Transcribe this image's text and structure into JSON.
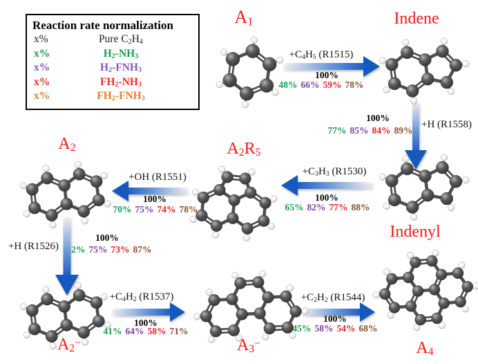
{
  "legend": {
    "title": "Reaction rate normalization",
    "rows": [
      {
        "x": "x%",
        "name": "Pure C₂H₄",
        "color": "#1a1a1a"
      },
      {
        "x": "x%",
        "name": "H₂-NH₃",
        "color": "#189A4F"
      },
      {
        "x": "x%",
        "name": "H₂-FNH₃",
        "color": "#8C55BE"
      },
      {
        "x": "x%",
        "name": "FH₂-NH₃",
        "color": "#EE2B2B"
      },
      {
        "x": "x%",
        "name": "FH₂-FNH₃",
        "color": "#E07E2E"
      }
    ]
  },
  "species": {
    "a1": {
      "label": "A₁",
      "molecule": "benzene"
    },
    "indene": {
      "label": "Indene",
      "molecule": "indene"
    },
    "indenyl": {
      "label": "Indenyl",
      "molecule": "indenyl"
    },
    "a2r5": {
      "label": "A₂R₅",
      "molecule": "acenaphthylene"
    },
    "a2": {
      "label": "A₂",
      "molecule": "naphthalene"
    },
    "a2m": {
      "label": "A₂⁻",
      "molecule": "naphthalene"
    },
    "a3m": {
      "label": "A₃⁻",
      "molecule": "phenanthrene"
    },
    "a4": {
      "label": "A₄",
      "molecule": "pyrene"
    }
  },
  "species_label_color": "#FE1412",
  "pct_colors": [
    "#189A4F",
    "#7C3FA6",
    "#EC1C24",
    "#8C4A28"
  ],
  "arrow_color": "#1559BD",
  "molecule_colors": {
    "carbon": "#5a5a5a",
    "hydrogen": "#f2f2f2"
  },
  "reactions": {
    "r1515": {
      "label": "+C₄H₅ (R1515)",
      "base": "100%",
      "pcts": [
        "48%",
        "66%",
        "59%",
        "78%"
      ]
    },
    "r1558": {
      "label": "+H (R1558)",
      "base": "100%",
      "pcts": [
        "77%",
        "85%",
        "84%",
        "89%"
      ]
    },
    "r1530": {
      "label": "+C₃H₃ (R1530)",
      "base": "100%",
      "pcts": [
        "65%",
        "82%",
        "77%",
        "88%"
      ]
    },
    "r1551": {
      "label": "+OH (R1551)",
      "base": "100%",
      "pcts": [
        "70%",
        "75%",
        "74%",
        "78%"
      ]
    },
    "r1526": {
      "label": "+H (R1526)",
      "base": "100%",
      "pcts": [
        "52%",
        "75%",
        "73%",
        "87%"
      ]
    },
    "r1537": {
      "label": "+C₄H₂ (R1537)",
      "base": "100%",
      "pcts": [
        "41%",
        "64%",
        "58%",
        "71%"
      ]
    },
    "r1544": {
      "label": "+C₂H₂ (R1544)",
      "base": "100%",
      "pcts": [
        "45%",
        "58%",
        "54%",
        "68%"
      ]
    }
  }
}
